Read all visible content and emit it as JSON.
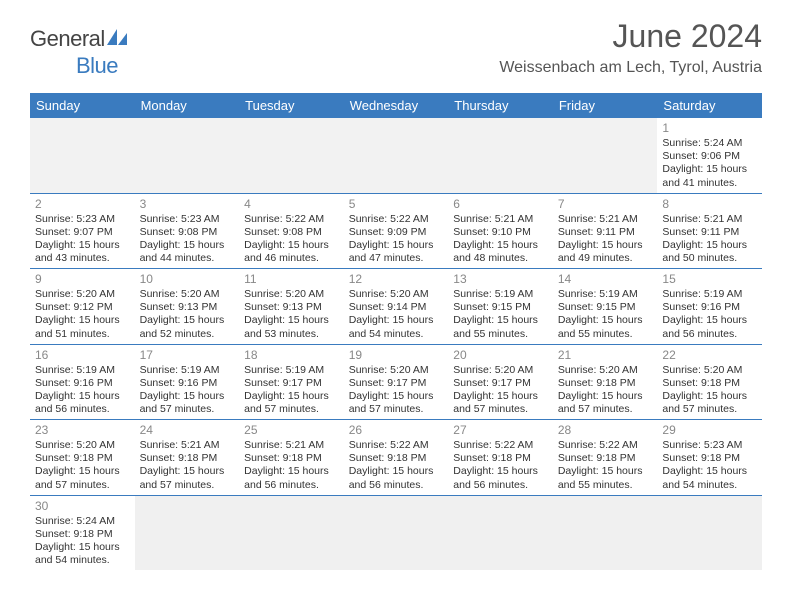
{
  "logo": {
    "text_gray": "General",
    "text_blue": "Blue"
  },
  "header": {
    "title": "June 2024",
    "location": "Weissenbach am Lech, Tyrol, Austria"
  },
  "colors": {
    "header_bar": "#3a7bbf",
    "text_gray": "#555",
    "day_num": "#888",
    "cell_text": "#333",
    "empty_bg": "#f2f2f2"
  },
  "day_labels": [
    "Sunday",
    "Monday",
    "Tuesday",
    "Wednesday",
    "Thursday",
    "Friday",
    "Saturday"
  ],
  "weeks": [
    [
      null,
      null,
      null,
      null,
      null,
      null,
      {
        "n": "1",
        "sr": "Sunrise: 5:24 AM",
        "ss": "Sunset: 9:06 PM",
        "dl": "Daylight: 15 hours and 41 minutes."
      }
    ],
    [
      {
        "n": "2",
        "sr": "Sunrise: 5:23 AM",
        "ss": "Sunset: 9:07 PM",
        "dl": "Daylight: 15 hours and 43 minutes."
      },
      {
        "n": "3",
        "sr": "Sunrise: 5:23 AM",
        "ss": "Sunset: 9:08 PM",
        "dl": "Daylight: 15 hours and 44 minutes."
      },
      {
        "n": "4",
        "sr": "Sunrise: 5:22 AM",
        "ss": "Sunset: 9:08 PM",
        "dl": "Daylight: 15 hours and 46 minutes."
      },
      {
        "n": "5",
        "sr": "Sunrise: 5:22 AM",
        "ss": "Sunset: 9:09 PM",
        "dl": "Daylight: 15 hours and 47 minutes."
      },
      {
        "n": "6",
        "sr": "Sunrise: 5:21 AM",
        "ss": "Sunset: 9:10 PM",
        "dl": "Daylight: 15 hours and 48 minutes."
      },
      {
        "n": "7",
        "sr": "Sunrise: 5:21 AM",
        "ss": "Sunset: 9:11 PM",
        "dl": "Daylight: 15 hours and 49 minutes."
      },
      {
        "n": "8",
        "sr": "Sunrise: 5:21 AM",
        "ss": "Sunset: 9:11 PM",
        "dl": "Daylight: 15 hours and 50 minutes."
      }
    ],
    [
      {
        "n": "9",
        "sr": "Sunrise: 5:20 AM",
        "ss": "Sunset: 9:12 PM",
        "dl": "Daylight: 15 hours and 51 minutes."
      },
      {
        "n": "10",
        "sr": "Sunrise: 5:20 AM",
        "ss": "Sunset: 9:13 PM",
        "dl": "Daylight: 15 hours and 52 minutes."
      },
      {
        "n": "11",
        "sr": "Sunrise: 5:20 AM",
        "ss": "Sunset: 9:13 PM",
        "dl": "Daylight: 15 hours and 53 minutes."
      },
      {
        "n": "12",
        "sr": "Sunrise: 5:20 AM",
        "ss": "Sunset: 9:14 PM",
        "dl": "Daylight: 15 hours and 54 minutes."
      },
      {
        "n": "13",
        "sr": "Sunrise: 5:19 AM",
        "ss": "Sunset: 9:15 PM",
        "dl": "Daylight: 15 hours and 55 minutes."
      },
      {
        "n": "14",
        "sr": "Sunrise: 5:19 AM",
        "ss": "Sunset: 9:15 PM",
        "dl": "Daylight: 15 hours and 55 minutes."
      },
      {
        "n": "15",
        "sr": "Sunrise: 5:19 AM",
        "ss": "Sunset: 9:16 PM",
        "dl": "Daylight: 15 hours and 56 minutes."
      }
    ],
    [
      {
        "n": "16",
        "sr": "Sunrise: 5:19 AM",
        "ss": "Sunset: 9:16 PM",
        "dl": "Daylight: 15 hours and 56 minutes."
      },
      {
        "n": "17",
        "sr": "Sunrise: 5:19 AM",
        "ss": "Sunset: 9:16 PM",
        "dl": "Daylight: 15 hours and 57 minutes."
      },
      {
        "n": "18",
        "sr": "Sunrise: 5:19 AM",
        "ss": "Sunset: 9:17 PM",
        "dl": "Daylight: 15 hours and 57 minutes."
      },
      {
        "n": "19",
        "sr": "Sunrise: 5:20 AM",
        "ss": "Sunset: 9:17 PM",
        "dl": "Daylight: 15 hours and 57 minutes."
      },
      {
        "n": "20",
        "sr": "Sunrise: 5:20 AM",
        "ss": "Sunset: 9:17 PM",
        "dl": "Daylight: 15 hours and 57 minutes."
      },
      {
        "n": "21",
        "sr": "Sunrise: 5:20 AM",
        "ss": "Sunset: 9:18 PM",
        "dl": "Daylight: 15 hours and 57 minutes."
      },
      {
        "n": "22",
        "sr": "Sunrise: 5:20 AM",
        "ss": "Sunset: 9:18 PM",
        "dl": "Daylight: 15 hours and 57 minutes."
      }
    ],
    [
      {
        "n": "23",
        "sr": "Sunrise: 5:20 AM",
        "ss": "Sunset: 9:18 PM",
        "dl": "Daylight: 15 hours and 57 minutes."
      },
      {
        "n": "24",
        "sr": "Sunrise: 5:21 AM",
        "ss": "Sunset: 9:18 PM",
        "dl": "Daylight: 15 hours and 57 minutes."
      },
      {
        "n": "25",
        "sr": "Sunrise: 5:21 AM",
        "ss": "Sunset: 9:18 PM",
        "dl": "Daylight: 15 hours and 56 minutes."
      },
      {
        "n": "26",
        "sr": "Sunrise: 5:22 AM",
        "ss": "Sunset: 9:18 PM",
        "dl": "Daylight: 15 hours and 56 minutes."
      },
      {
        "n": "27",
        "sr": "Sunrise: 5:22 AM",
        "ss": "Sunset: 9:18 PM",
        "dl": "Daylight: 15 hours and 56 minutes."
      },
      {
        "n": "28",
        "sr": "Sunrise: 5:22 AM",
        "ss": "Sunset: 9:18 PM",
        "dl": "Daylight: 15 hours and 55 minutes."
      },
      {
        "n": "29",
        "sr": "Sunrise: 5:23 AM",
        "ss": "Sunset: 9:18 PM",
        "dl": "Daylight: 15 hours and 54 minutes."
      }
    ],
    [
      {
        "n": "30",
        "sr": "Sunrise: 5:24 AM",
        "ss": "Sunset: 9:18 PM",
        "dl": "Daylight: 15 hours and 54 minutes."
      },
      null,
      null,
      null,
      null,
      null,
      null
    ]
  ]
}
